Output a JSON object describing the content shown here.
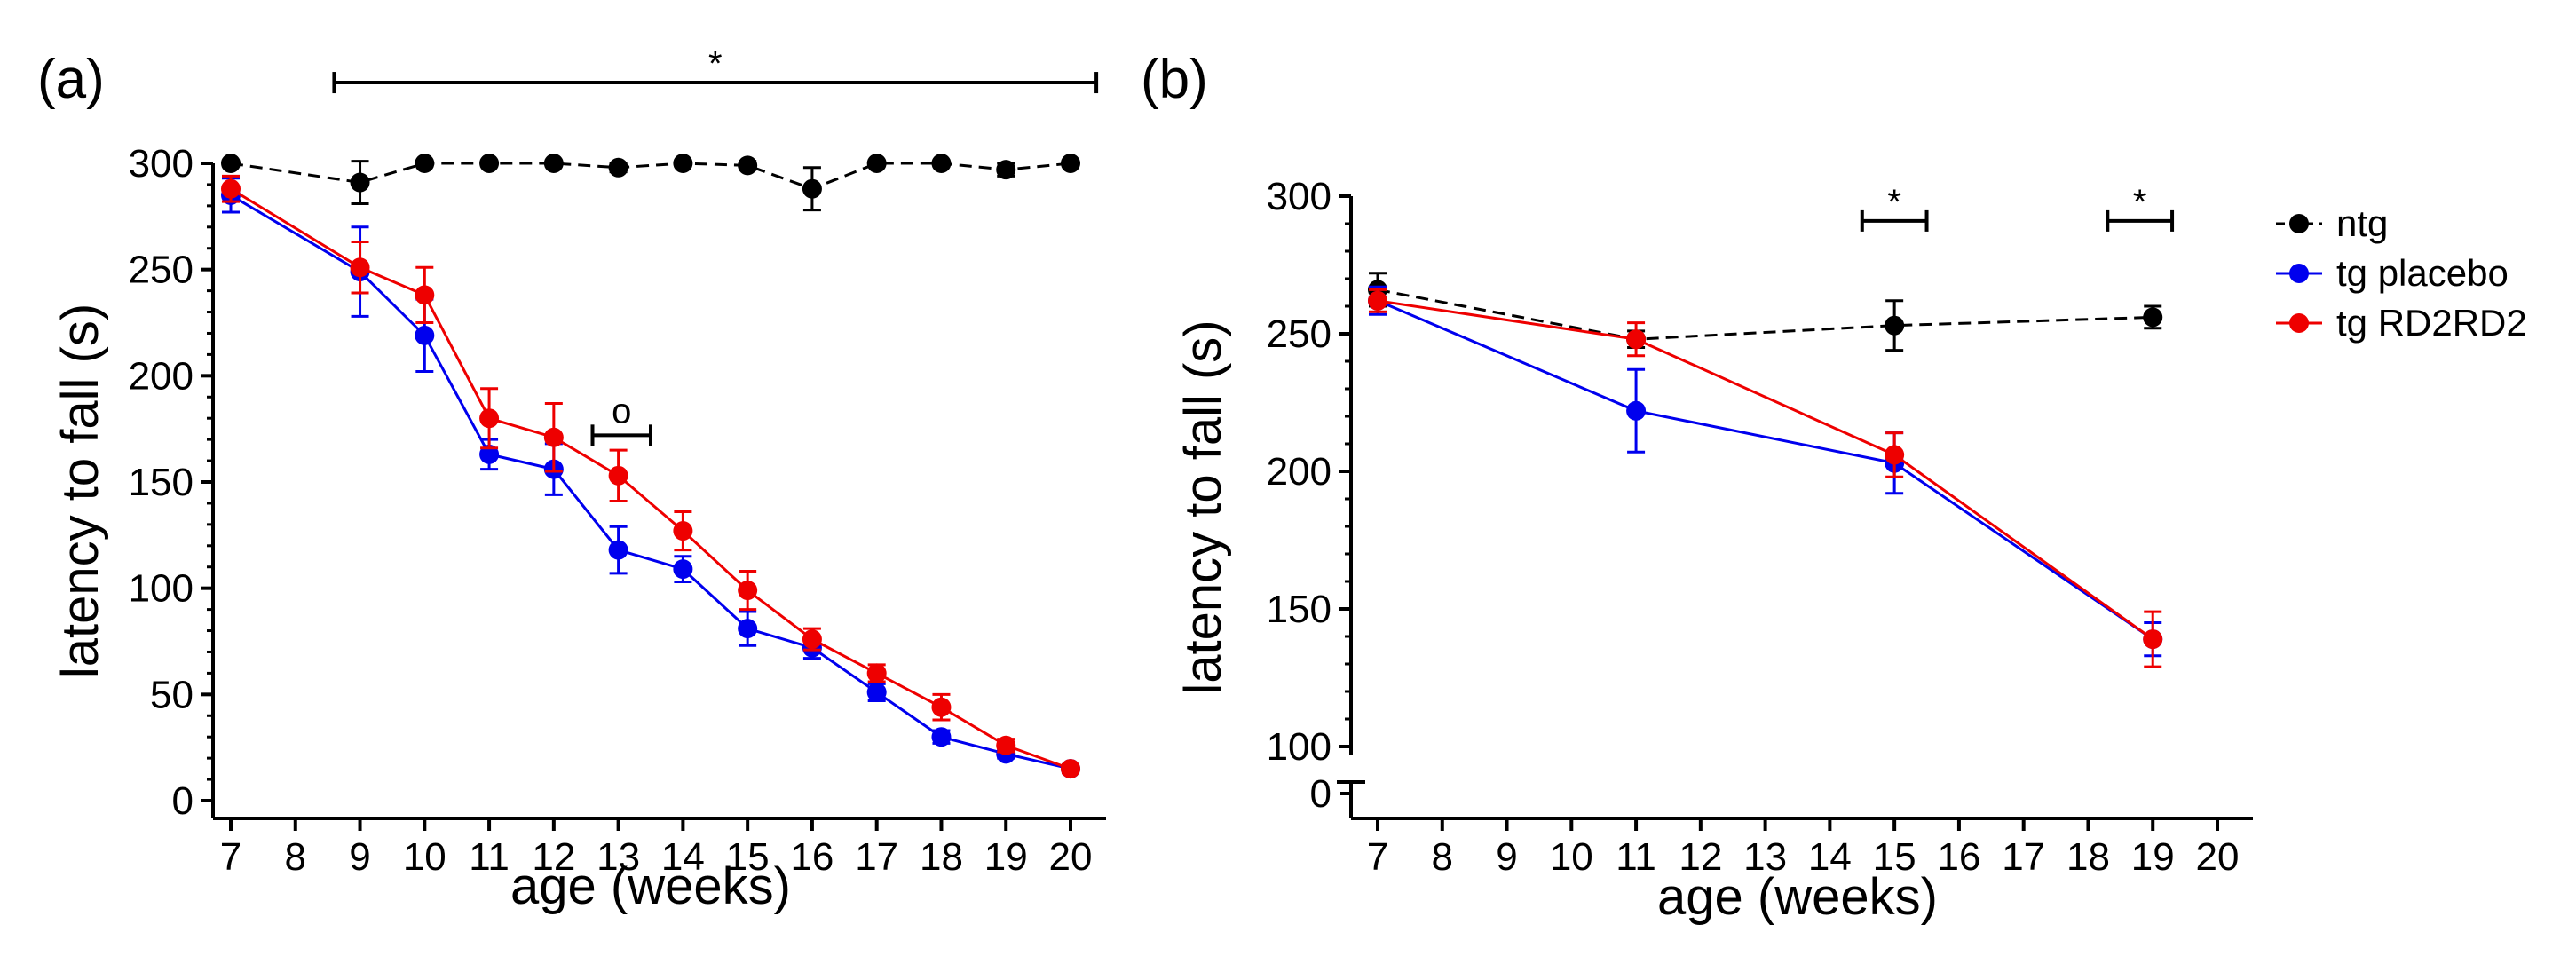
{
  "colors": {
    "ntg": "#000000",
    "tg_placebo": "#0000ee",
    "tg_rd2rd2": "#ee0000",
    "axis": "#000000"
  },
  "chart_data": [
    {
      "type": "line",
      "panel_label": "(a)",
      "xlabel": "age (weeks)",
      "ylabel": "latency to fall (s)",
      "xlim": [
        6.5,
        20.5
      ],
      "ylim": [
        0,
        300
      ],
      "x_ticks": [
        7,
        8,
        9,
        10,
        11,
        12,
        13,
        14,
        15,
        16,
        17,
        18,
        19,
        20
      ],
      "y_ticks": [
        0,
        50,
        100,
        150,
        200,
        250,
        300
      ],
      "series": [
        {
          "name": "ntg",
          "color": "#000000",
          "dash": "dash",
          "x": [
            7,
            9,
            10,
            11,
            12,
            13,
            14,
            15,
            16,
            17,
            18,
            19,
            20
          ],
          "y": [
            300,
            291,
            300,
            300,
            300,
            298,
            300,
            299,
            288,
            300,
            300,
            297,
            300
          ],
          "err": [
            1,
            10,
            1,
            1,
            1,
            2,
            1,
            2,
            10,
            1,
            1,
            3,
            1
          ]
        },
        {
          "name": "tg placebo",
          "color": "#0000ee",
          "dash": "solid",
          "x": [
            7,
            9,
            10,
            11,
            12,
            13,
            14,
            15,
            16,
            17,
            18,
            19,
            20
          ],
          "y": [
            285,
            249,
            219,
            163,
            156,
            118,
            109,
            81,
            72,
            51,
            30,
            22,
            15
          ],
          "err": [
            8,
            21,
            17,
            7,
            12,
            11,
            6,
            8,
            5,
            4,
            3,
            2,
            2
          ]
        },
        {
          "name": "tg RD2RD2",
          "color": "#ee0000",
          "dash": "solid",
          "x": [
            7,
            9,
            10,
            11,
            12,
            13,
            14,
            15,
            16,
            17,
            18,
            19,
            20
          ],
          "y": [
            288,
            251,
            238,
            180,
            171,
            153,
            127,
            99,
            76,
            60,
            44,
            26,
            15
          ],
          "err": [
            6,
            12,
            13,
            14,
            16,
            12,
            9,
            9,
            5,
            4,
            6,
            3,
            2
          ]
        }
      ],
      "annotations": [
        {
          "label": "*",
          "x_start": 8.6,
          "x_end": 20.4,
          "y": 338
        },
        {
          "label": "o",
          "x_start": 12.6,
          "x_end": 13.5,
          "y": 172
        }
      ]
    },
    {
      "type": "line",
      "panel_label": "(b)",
      "xlabel": "age (weeks)",
      "ylabel": "latency to fall (s)",
      "xlim": [
        6.5,
        20.5
      ],
      "ylim": [
        100,
        300
      ],
      "axis_break": true,
      "x_ticks": [
        7,
        8,
        9,
        10,
        11,
        12,
        13,
        14,
        15,
        16,
        17,
        18,
        19,
        20
      ],
      "y_ticks": [
        100,
        150,
        200,
        250,
        300
      ],
      "y_extra_tick": 0,
      "series": [
        {
          "name": "ntg",
          "color": "#000000",
          "dash": "dash",
          "x": [
            7,
            11,
            15,
            19
          ],
          "y": [
            266,
            248,
            253,
            256
          ],
          "err": [
            6,
            3,
            9,
            4
          ]
        },
        {
          "name": "tg placebo",
          "color": "#0000ee",
          "dash": "solid",
          "x": [
            7,
            11,
            15,
            19
          ],
          "y": [
            262,
            222,
            203,
            139
          ],
          "err": [
            5,
            15,
            11,
            6
          ]
        },
        {
          "name": "tg RD2RD2",
          "color": "#ee0000",
          "dash": "solid",
          "x": [
            7,
            11,
            15,
            19
          ],
          "y": [
            262,
            248,
            206,
            139
          ],
          "err": [
            4,
            6,
            8,
            10
          ]
        }
      ],
      "annotations": [
        {
          "label": "*",
          "x_start": 14.5,
          "x_end": 15.5,
          "y": 291
        },
        {
          "label": "*",
          "x_start": 18.3,
          "x_end": 19.3,
          "y": 291
        }
      ],
      "legend": {
        "position": "right",
        "entries": [
          "ntg",
          "tg placebo",
          "tg RD2RD2"
        ]
      }
    }
  ]
}
